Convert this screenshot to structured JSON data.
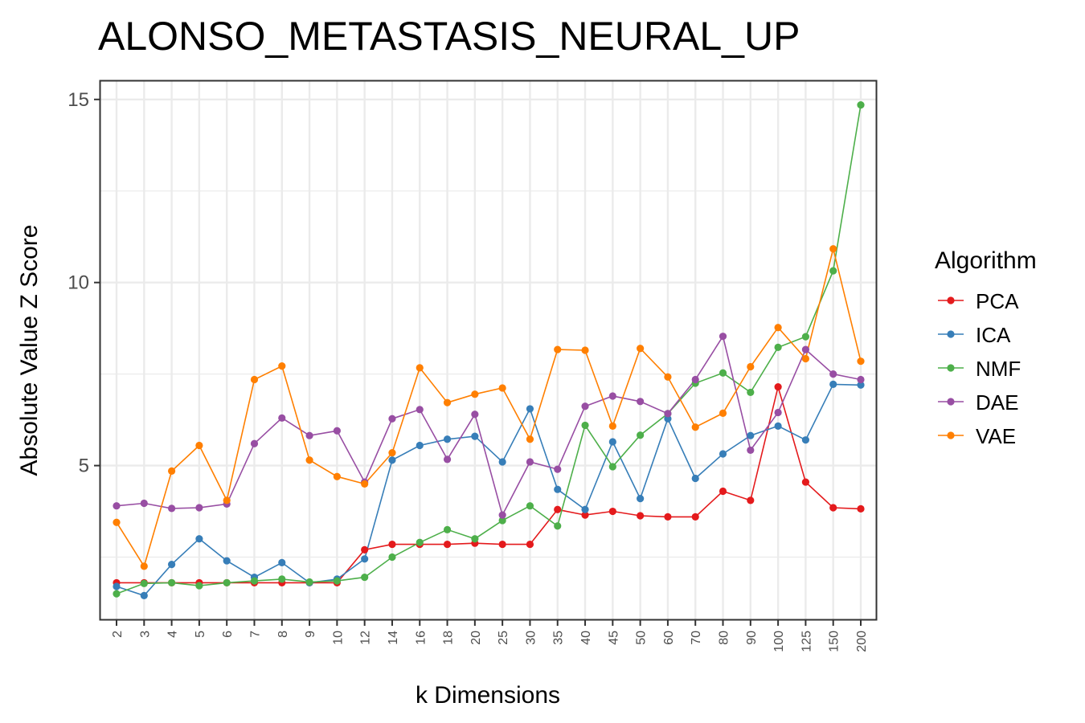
{
  "chart_data": {
    "type": "line",
    "title": "ALONSO_METASTASIS_NEURAL_UP",
    "xlabel": "k Dimensions",
    "ylabel": "Absolute Value Z Score",
    "categories": [
      "2",
      "3",
      "4",
      "5",
      "6",
      "7",
      "8",
      "9",
      "10",
      "12",
      "14",
      "16",
      "18",
      "20",
      "25",
      "30",
      "35",
      "40",
      "45",
      "50",
      "60",
      "70",
      "80",
      "90",
      "100",
      "125",
      "150",
      "200"
    ],
    "ylim": [
      0.8,
      15.5
    ],
    "yticks": [
      5,
      10,
      15
    ],
    "grid": true,
    "legend_title": "Algorithm",
    "legend_position": "right",
    "series": [
      {
        "name": "PCA",
        "color": "#E41A1C",
        "values": [
          1.8,
          1.8,
          1.8,
          1.8,
          1.8,
          1.8,
          1.8,
          1.8,
          1.8,
          2.7,
          2.85,
          2.85,
          2.85,
          2.88,
          2.85,
          2.85,
          3.8,
          3.65,
          3.75,
          3.63,
          3.6,
          3.6,
          4.3,
          4.05,
          7.15,
          4.55,
          3.85,
          3.82
        ]
      },
      {
        "name": "ICA",
        "color": "#377EB8",
        "values": [
          1.7,
          1.45,
          2.3,
          3.0,
          2.4,
          1.95,
          2.35,
          1.8,
          1.9,
          2.45,
          5.15,
          5.55,
          5.72,
          5.8,
          5.1,
          6.55,
          4.35,
          3.8,
          5.65,
          4.1,
          6.28,
          4.65,
          5.32,
          5.82,
          6.08,
          5.7,
          7.22,
          7.2
        ]
      },
      {
        "name": "NMF",
        "color": "#4DAF4A",
        "values": [
          1.5,
          1.78,
          1.8,
          1.72,
          1.8,
          1.85,
          1.9,
          1.82,
          1.85,
          1.95,
          2.5,
          2.9,
          3.25,
          3.0,
          3.5,
          3.9,
          3.35,
          6.1,
          4.97,
          5.83,
          6.42,
          7.25,
          7.53,
          7.0,
          8.23,
          8.52,
          10.32,
          14.85
        ]
      },
      {
        "name": "DAE",
        "color": "#984EA3",
        "values": [
          3.9,
          3.97,
          3.83,
          3.85,
          3.95,
          5.6,
          6.3,
          5.82,
          5.95,
          4.55,
          6.28,
          6.53,
          5.17,
          6.4,
          3.65,
          5.1,
          4.9,
          6.62,
          6.9,
          6.75,
          6.42,
          7.35,
          8.53,
          5.42,
          6.45,
          8.17,
          7.5,
          7.35
        ]
      },
      {
        "name": "VAE",
        "color": "#FF7F00",
        "values": [
          3.45,
          2.25,
          4.85,
          5.55,
          4.05,
          7.35,
          7.72,
          5.15,
          4.7,
          4.5,
          5.35,
          7.67,
          6.72,
          6.95,
          7.12,
          5.72,
          8.17,
          8.15,
          6.08,
          8.2,
          7.42,
          6.05,
          6.43,
          7.7,
          8.77,
          7.92,
          10.92,
          7.85
        ]
      }
    ]
  }
}
